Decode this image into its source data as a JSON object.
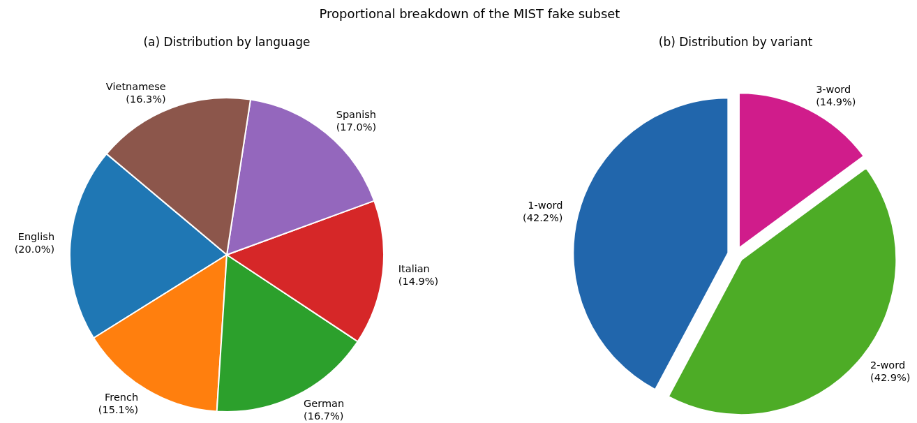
{
  "chart_data": [
    {
      "type": "other",
      "title": "Proportional breakdown of the MIST fake subset"
    },
    {
      "type": "pie",
      "title": "(a) Distribution by language",
      "categories": [
        "English",
        "French",
        "German",
        "Italian",
        "Spanish",
        "Vietnamese"
      ],
      "values": [
        20.0,
        15.1,
        16.7,
        14.9,
        17.0,
        16.3
      ],
      "colors": [
        "#1f77b4",
        "#ff7f0e",
        "#2ca02c",
        "#d62728",
        "#9467bd",
        "#8c564b"
      ],
      "value_labels": [
        "(20.0%)",
        "(15.1%)",
        "(16.7%)",
        "(14.9%)",
        "(17.0%)",
        "(16.3%)"
      ]
    },
    {
      "type": "pie",
      "title": "(b) Distribution by variant",
      "categories": [
        "1-word",
        "2-word",
        "3-word"
      ],
      "values": [
        42.2,
        42.9,
        14.9
      ],
      "colors": [
        "#2166ac",
        "#4dac26",
        "#d01c8b"
      ],
      "value_labels": [
        "(42.2%)",
        "(42.9%)",
        "(14.9%)"
      ]
    }
  ]
}
